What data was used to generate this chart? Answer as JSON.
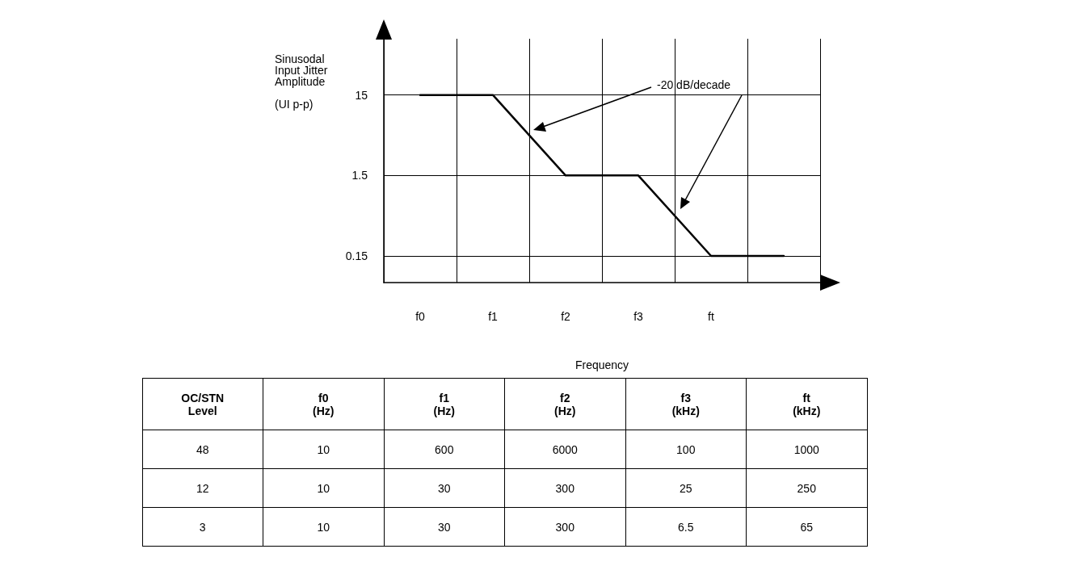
{
  "chart_data": [
    {
      "type": "line",
      "xlabel": "Frequency",
      "ylabel": "Sinusodal\nInput Jitter\nAmplitude\n\n(UI p-p)",
      "categories": [
        "f0",
        "f1",
        "f2",
        "f3",
        "ft",
        null
      ],
      "values": [
        15,
        15,
        1.5,
        1.5,
        0.15,
        0.15
      ],
      "color": "#000000",
      "log": "y",
      "ylim": [
        0.07,
        75
      ],
      "yticks": [
        0.15,
        1.5,
        15
      ],
      "grid": true,
      "marker": "none",
      "line_style": "solid",
      "annotations": [
        "-20 dB/decade"
      ]
    },
    {
      "type": "other",
      "annotations": [
        "OC/STN\nLevel",
        "f0\n(Hz)",
        "f1\n(Hz)",
        "f2\n(Hz)",
        "f3\n(kHz)",
        "ft\n(kHz)",
        "48",
        "10",
        "600",
        "6000",
        "100",
        "1000",
        "12",
        "10",
        "30",
        "300",
        "25",
        "250",
        "3",
        "10",
        "30",
        "300",
        "6.5",
        "65"
      ]
    }
  ]
}
